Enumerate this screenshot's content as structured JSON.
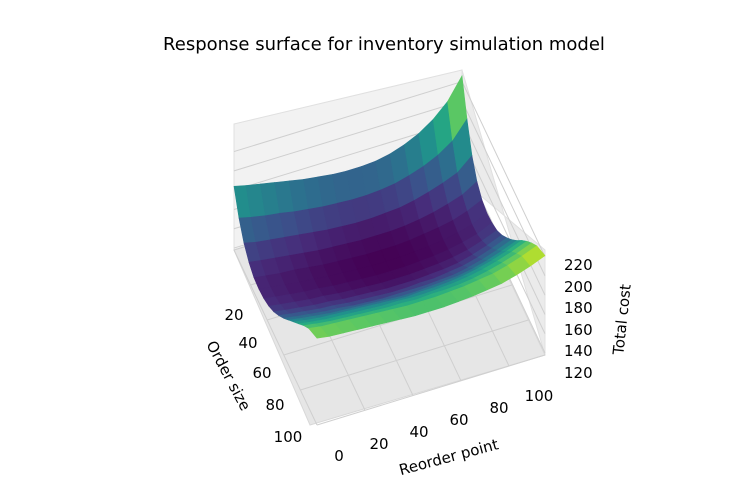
{
  "chart_data": {
    "type": "surface",
    "title": "Response surface for inventory simulation model",
    "xlabel": "Order size",
    "ylabel": "Reorder point",
    "zlabel": "Total cost",
    "x_ticks": [
      "20",
      "40",
      "60",
      "80",
      "100"
    ],
    "y_ticks": [
      "0",
      "20",
      "40",
      "60",
      "80",
      "100"
    ],
    "z_ticks": [
      "120",
      "140",
      "160",
      "180",
      "200",
      "220"
    ],
    "xlim": [
      5,
      100
    ],
    "ylim": [
      0,
      100
    ],
    "zlim": [
      118,
      232
    ],
    "colormap": "viridis",
    "grid": true,
    "x": [
      5,
      11,
      17,
      23,
      29,
      35,
      41,
      47,
      53,
      59,
      65,
      71,
      77,
      83,
      89,
      95,
      100
    ],
    "y": [
      0,
      6,
      12,
      18,
      24,
      30,
      36,
      42,
      48,
      54,
      60,
      66,
      72,
      78,
      84,
      90,
      100
    ],
    "z": [
      [
        226,
        192,
        165,
        149,
        141,
        138,
        139,
        142,
        148,
        156,
        165,
        175,
        186,
        196,
        205,
        213,
        221
      ],
      [
        204,
        174,
        152,
        140,
        134,
        131,
        132,
        136,
        142,
        150,
        159,
        169,
        180,
        190,
        199,
        207,
        215
      ],
      [
        190,
        164,
        146,
        135,
        129,
        127,
        128,
        131,
        137,
        145,
        154,
        164,
        175,
        185,
        194,
        202,
        210
      ],
      [
        180,
        157,
        141,
        131,
        126,
        124,
        125,
        128,
        133,
        141,
        150,
        160,
        171,
        181,
        190,
        198,
        206
      ],
      [
        173,
        152,
        137,
        128,
        124,
        122,
        123,
        126,
        131,
        139,
        147,
        157,
        168,
        178,
        187,
        196,
        204
      ],
      [
        168,
        148,
        134,
        126,
        122,
        121,
        122,
        125,
        130,
        137,
        146,
        156,
        166,
        176,
        185,
        194,
        202
      ],
      [
        165,
        146,
        133,
        125,
        121,
        120,
        121,
        124,
        129,
        137,
        145,
        155,
        165,
        175,
        184,
        193,
        201
      ],
      [
        164,
        145,
        132,
        125,
        121,
        120,
        121,
        124,
        129,
        136,
        145,
        154,
        165,
        174,
        184,
        192,
        200
      ],
      [
        164,
        145,
        132,
        125,
        121,
        120,
        121,
        124,
        129,
        136,
        145,
        154,
        164,
        174,
        183,
        192,
        200
      ],
      [
        165,
        146,
        133,
        126,
        122,
        121,
        122,
        125,
        130,
        137,
        145,
        155,
        165,
        175,
        184,
        192,
        200
      ],
      [
        167,
        147,
        134,
        127,
        123,
        122,
        123,
        126,
        131,
        138,
        146,
        156,
        166,
        175,
        184,
        193,
        201
      ],
      [
        169,
        149,
        136,
        128,
        124,
        123,
        124,
        127,
        132,
        139,
        147,
        157,
        167,
        176,
        185,
        194,
        202
      ],
      [
        172,
        151,
        138,
        130,
        126,
        125,
        126,
        129,
        134,
        141,
        149,
        158,
        168,
        177,
        186,
        195,
        203
      ],
      [
        175,
        154,
        140,
        132,
        128,
        126,
        127,
        130,
        135,
        142,
        150,
        159,
        169,
        178,
        187,
        196,
        204
      ],
      [
        178,
        156,
        142,
        134,
        129,
        128,
        129,
        132,
        137,
        144,
        152,
        161,
        170,
        179,
        188,
        197,
        205
      ],
      [
        181,
        159,
        144,
        136,
        131,
        130,
        131,
        134,
        139,
        146,
        154,
        163,
        172,
        181,
        190,
        198,
        206
      ],
      [
        184,
        162,
        147,
        138,
        133,
        132,
        133,
        136,
        141,
        148,
        156,
        165,
        174,
        183,
        192,
        200,
        208
      ]
    ]
  }
}
